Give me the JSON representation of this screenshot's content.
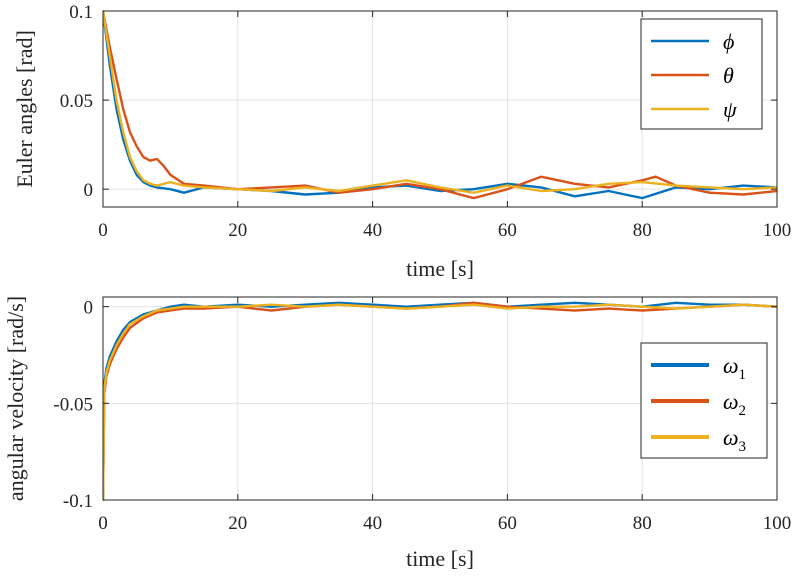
{
  "colors": {
    "series1": "#0072BD",
    "series2": "#D95319",
    "series3": "#EDB120",
    "axis": "#262626",
    "grid": "#e3e3e3"
  },
  "chart_data": [
    {
      "type": "line",
      "xlabel": "time [s]",
      "ylabel": "Euler angles [rad]",
      "xlim": [
        0,
        100
      ],
      "ylim": [
        -0.01,
        0.1
      ],
      "xticks": [
        "0",
        "20",
        "40",
        "60",
        "80",
        "100"
      ],
      "yticks": [
        "0",
        "0.05",
        "0.1"
      ],
      "grid": true,
      "legend_position": "top-right",
      "series": [
        {
          "name": "ϕ",
          "color": "#0072BD",
          "x": [
            0,
            1,
            2,
            3,
            4,
            5,
            6,
            7,
            8,
            10,
            12,
            15,
            20,
            25,
            30,
            35,
            40,
            45,
            50,
            55,
            60,
            65,
            70,
            75,
            80,
            85,
            90,
            95,
            100
          ],
          "y": [
            0.1,
            0.07,
            0.045,
            0.028,
            0.016,
            0.008,
            0.004,
            0.002,
            0.001,
            0.0,
            -0.002,
            0.001,
            0.0,
            -0.001,
            -0.003,
            -0.002,
            0.001,
            0.002,
            -0.001,
            0.0,
            0.003,
            0.001,
            -0.004,
            -0.001,
            -0.005,
            0.001,
            0.0,
            0.002,
            0.001
          ]
        },
        {
          "name": "θ",
          "color": "#D95319",
          "x": [
            0,
            1,
            2,
            3,
            4,
            5,
            6,
            7,
            8,
            9,
            10,
            12,
            15,
            20,
            25,
            30,
            35,
            40,
            45,
            50,
            55,
            60,
            65,
            70,
            75,
            80,
            82,
            85,
            90,
            95,
            100
          ],
          "y": [
            0.1,
            0.08,
            0.062,
            0.045,
            0.032,
            0.024,
            0.018,
            0.016,
            0.017,
            0.013,
            0.008,
            0.003,
            0.002,
            0.0,
            0.001,
            0.002,
            -0.002,
            0.0,
            0.003,
            0.0,
            -0.005,
            0.0,
            0.007,
            0.003,
            0.001,
            0.005,
            0.007,
            0.002,
            -0.002,
            -0.003,
            -0.001
          ]
        },
        {
          "name": "ψ",
          "color": "#EDB120",
          "x": [
            0,
            1,
            2,
            3,
            4,
            5,
            6,
            7,
            8,
            10,
            12,
            15,
            20,
            25,
            30,
            35,
            40,
            45,
            50,
            55,
            60,
            65,
            70,
            75,
            80,
            85,
            90,
            95,
            100
          ],
          "y": [
            0.1,
            0.075,
            0.05,
            0.032,
            0.018,
            0.01,
            0.005,
            0.003,
            0.002,
            0.004,
            0.002,
            0.001,
            0.0,
            -0.001,
            0.001,
            -0.001,
            0.002,
            0.005,
            0.001,
            -0.002,
            0.002,
            -0.001,
            0.0,
            0.003,
            0.004,
            0.002,
            0.001,
            0.0,
            0.001
          ]
        }
      ]
    },
    {
      "type": "line",
      "xlabel": "time [s]",
      "ylabel": "angular velocity [rad/s]",
      "xlim": [
        0,
        100
      ],
      "ylim": [
        -0.1,
        0.005
      ],
      "xticks": [
        "0",
        "20",
        "40",
        "60",
        "80",
        "100"
      ],
      "yticks": [
        "0",
        "-0.05",
        "-0.1"
      ],
      "grid": true,
      "legend_position": "bottom-right",
      "series": [
        {
          "name": "ω1",
          "color": "#0072BD",
          "x": [
            0,
            0.2,
            0.5,
            1,
            2,
            3,
            4,
            6,
            8,
            10,
            12,
            15,
            20,
            25,
            30,
            35,
            40,
            45,
            50,
            55,
            60,
            65,
            70,
            75,
            80,
            85,
            90,
            95,
            100
          ],
          "y": [
            -0.1,
            -0.04,
            -0.032,
            -0.026,
            -0.018,
            -0.012,
            -0.008,
            -0.004,
            -0.002,
            0.0,
            0.001,
            0.0,
            0.001,
            0.0,
            0.001,
            0.002,
            0.001,
            0.0,
            0.001,
            0.002,
            0.0,
            0.001,
            0.002,
            0.001,
            0.0,
            0.002,
            0.001,
            0.001,
            0.0
          ]
        },
        {
          "name": "ω2",
          "color": "#D95319",
          "x": [
            0,
            0.2,
            0.5,
            1,
            2,
            3,
            4,
            6,
            8,
            10,
            12,
            15,
            20,
            25,
            30,
            35,
            40,
            45,
            50,
            55,
            60,
            65,
            70,
            75,
            80,
            85,
            90,
            95,
            100
          ],
          "y": [
            -0.1,
            -0.045,
            -0.036,
            -0.03,
            -0.022,
            -0.016,
            -0.011,
            -0.006,
            -0.003,
            -0.002,
            -0.001,
            -0.001,
            0.0,
            -0.002,
            0.0,
            0.001,
            0.0,
            -0.001,
            0.0,
            0.002,
            0.0,
            -0.001,
            -0.002,
            -0.001,
            -0.002,
            -0.001,
            0.0,
            0.001,
            0.0
          ]
        },
        {
          "name": "ω3",
          "color": "#EDB120",
          "x": [
            0,
            0.2,
            0.5,
            1,
            2,
            3,
            4,
            6,
            8,
            10,
            12,
            15,
            20,
            25,
            30,
            35,
            40,
            45,
            50,
            55,
            60,
            65,
            70,
            75,
            80,
            85,
            90,
            95,
            100
          ],
          "y": [
            -0.1,
            -0.043,
            -0.034,
            -0.028,
            -0.02,
            -0.014,
            -0.009,
            -0.005,
            -0.002,
            -0.001,
            0.0,
            0.0,
            0.0,
            0.001,
            0.0,
            0.001,
            0.0,
            -0.001,
            0.0,
            0.001,
            -0.001,
            0.0,
            0.0,
            0.001,
            0.0,
            -0.001,
            0.0,
            0.001,
            0.0
          ]
        }
      ]
    }
  ]
}
